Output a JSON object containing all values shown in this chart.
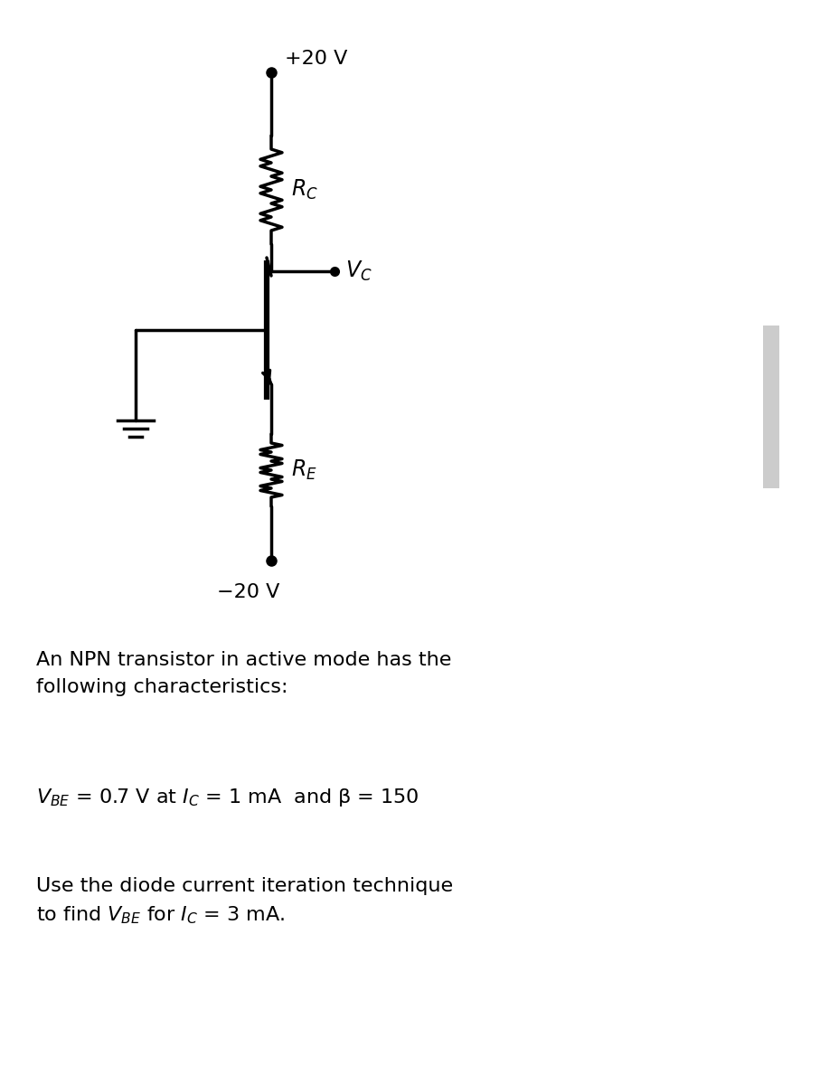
{
  "bg_color": "#ffffff",
  "text_color": "#000000",
  "line_color": "#000000",
  "line_width": 2.5,
  "fig_width": 9.07,
  "fig_height": 12.0,
  "plus20v_label": "+20 V",
  "minus20v_label": "−20 V",
  "rc_label": "$R_C$",
  "re_label": "$R_E$",
  "vc_label": "$V_C$",
  "text1": "An NPN transistor in active mode has the\nfollowing characteristics:",
  "text2": "$V_{BE}$ = 0.7 V at $I_C$ = 1 mA  and β = 150",
  "text3": "Use the diode current iteration technique\nto find $V_{BE}$ for $I_C$ = 3 mA."
}
